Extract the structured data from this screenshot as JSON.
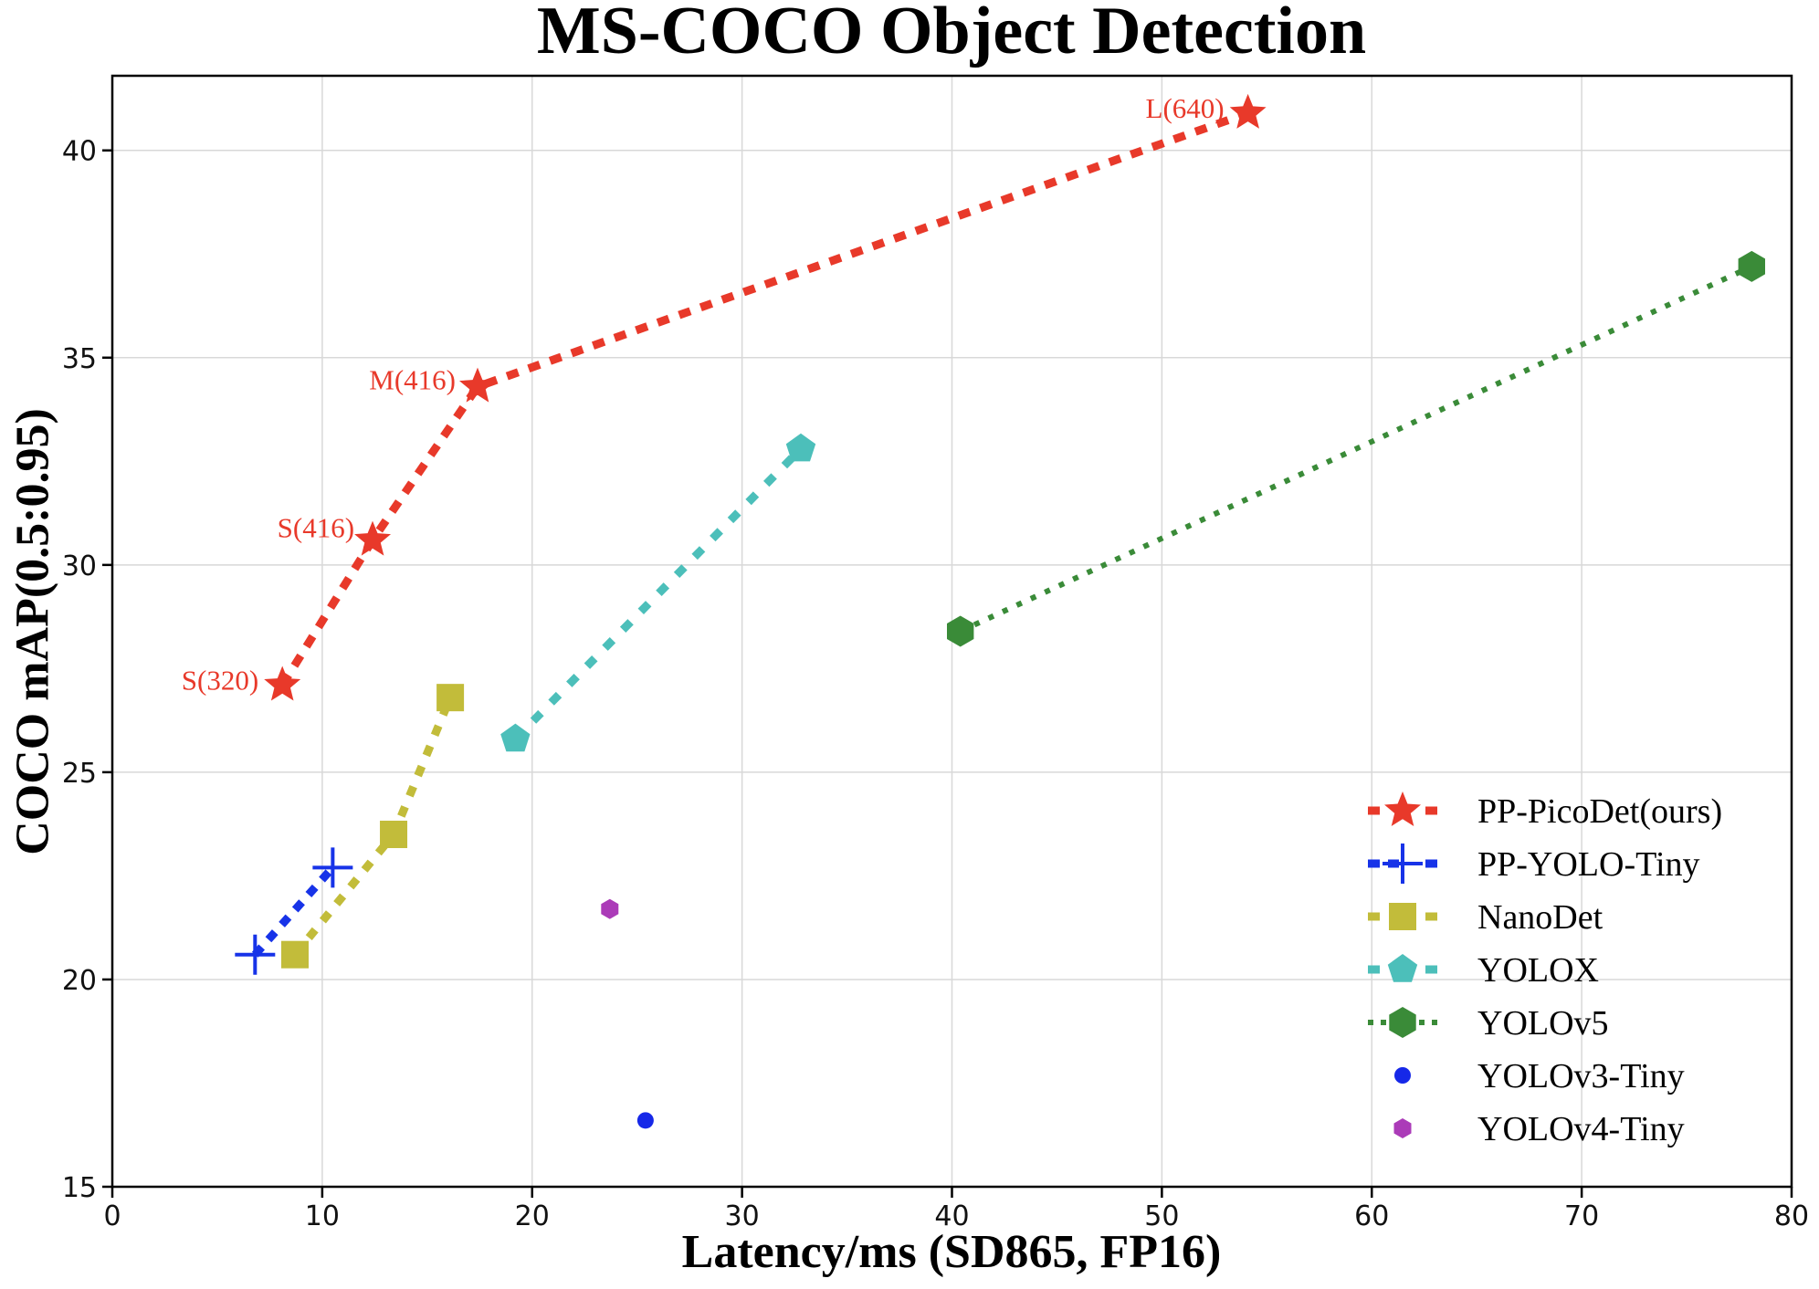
{
  "figure": {
    "title": "MS-COCO Object Detection",
    "x_axis_label": "Latency/ms (SD865, FP16)",
    "y_axis_label": "COCO mAP(0.5:0.95)"
  },
  "chart_data": {
    "type": "line",
    "title": "MS-COCO Object Detection",
    "xlabel": "Latency/ms (SD865, FP16)",
    "ylabel": "COCO mAP(0.5:0.95)",
    "xlim": [
      0,
      80
    ],
    "ylim": [
      15,
      41.8
    ],
    "x_ticks": [
      0,
      10,
      20,
      30,
      40,
      50,
      60,
      70,
      80
    ],
    "y_ticks": [
      15,
      20,
      25,
      30,
      35,
      40
    ],
    "grid": true,
    "grid_color": "#d8d8d8",
    "legend_position": "lower-right",
    "series": [
      {
        "name": "PP-PicoDet(ours)",
        "color": "#e8392a",
        "marker": "star",
        "marker_size": 21,
        "line_style": "dashed",
        "line_width": 9,
        "dash": [
          13,
          12
        ],
        "points": [
          {
            "x": 8.1,
            "y": 27.1,
            "label": "S(320)"
          },
          {
            "x": 12.4,
            "y": 30.6,
            "label": "S(416)"
          },
          {
            "x": 17.4,
            "y": 34.3,
            "label": "M(416)"
          },
          {
            "x": 54.1,
            "y": 40.9,
            "label": "L(640)"
          }
        ]
      },
      {
        "name": "PP-YOLO-Tiny",
        "color": "#1733e8",
        "marker": "plus",
        "marker_size": 22,
        "line_style": "dashed",
        "line_width": 9,
        "dash": [
          11,
          11
        ],
        "points": [
          {
            "x": 6.8,
            "y": 20.6
          },
          {
            "x": 10.5,
            "y": 22.7
          }
        ]
      },
      {
        "name": "NanoDet",
        "color": "#c2bc3a",
        "marker": "square",
        "marker_size": 15,
        "line_style": "dashed",
        "line_width": 9,
        "dash": [
          11,
          13
        ],
        "points": [
          {
            "x": 8.7,
            "y": 20.6
          },
          {
            "x": 13.4,
            "y": 23.5
          },
          {
            "x": 16.1,
            "y": 26.8
          }
        ]
      },
      {
        "name": "YOLOX",
        "color": "#4cbfba",
        "marker": "pentagon",
        "marker_size": 17,
        "line_style": "dashed",
        "line_width": 9,
        "dash": [
          12,
          16
        ],
        "points": [
          {
            "x": 19.2,
            "y": 25.8
          },
          {
            "x": 32.8,
            "y": 32.8
          }
        ]
      },
      {
        "name": "YOLOv5",
        "color": "#3a8b38",
        "marker": "hexagon",
        "marker_size": 17,
        "line_style": "dotted",
        "line_width": 6,
        "dash": [
          6,
          11
        ],
        "points": [
          {
            "x": 40.4,
            "y": 28.4
          },
          {
            "x": 78.1,
            "y": 37.2
          }
        ]
      },
      {
        "name": "YOLOv3-Tiny",
        "color": "#1628e8",
        "marker": "circle",
        "marker_size": 9,
        "line_style": "none",
        "line_width": 0,
        "dash": null,
        "points": [
          {
            "x": 25.4,
            "y": 16.6
          }
        ]
      },
      {
        "name": "YOLOv4-Tiny",
        "color": "#ab3bb8",
        "marker": "hexagon",
        "marker_size": 11,
        "line_style": "none",
        "line_width": 0,
        "dash": null,
        "points": [
          {
            "x": 23.7,
            "y": 21.7
          }
        ]
      }
    ]
  }
}
